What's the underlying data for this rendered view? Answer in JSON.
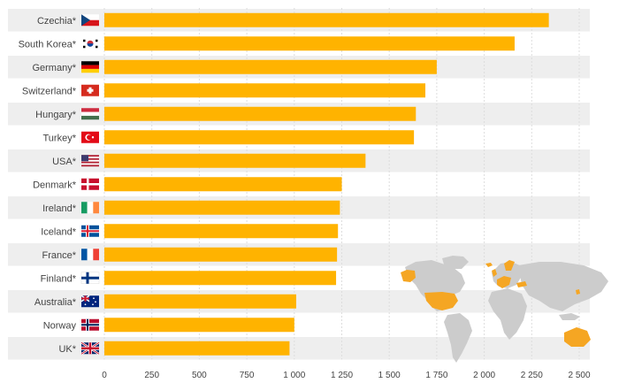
{
  "chart_data": {
    "type": "bar",
    "orientation": "horizontal",
    "categories": [
      "Czechia*",
      "South Korea*",
      "Germany*",
      "Switzerland*",
      "Hungary*",
      "Turkey*",
      "USA*",
      "Denmark*",
      "Ireland*",
      "Iceland*",
      "France*",
      "Finland*",
      "Australia*",
      "Norway",
      "UK*"
    ],
    "values": [
      2340,
      2160,
      1750,
      1690,
      1640,
      1630,
      1375,
      1250,
      1240,
      1230,
      1225,
      1220,
      1010,
      1000,
      975
    ],
    "xlim": [
      0,
      2500
    ],
    "xticks": [
      0,
      250,
      500,
      750,
      1000,
      1250,
      1500,
      1750,
      2000,
      2250,
      2500
    ],
    "xtick_labels": [
      "0",
      "250",
      "500",
      "750",
      "1 000",
      "1 250",
      "1 500",
      "1 750",
      "2 000",
      "2 250",
      "2 500"
    ],
    "bar_color": "#FFB300",
    "row_band_color": "#EEEEEE",
    "map_land_color": "#CCCCCC",
    "map_highlight_color": "#F5A623",
    "grid": true,
    "flag_icons": [
      "czech-flag-icon",
      "south-korea-flag-icon",
      "germany-flag-icon",
      "switzerland-flag-icon",
      "hungary-flag-icon",
      "turkey-flag-icon",
      "usa-flag-icon",
      "denmark-flag-icon",
      "ireland-flag-icon",
      "iceland-flag-icon",
      "france-flag-icon",
      "finland-flag-icon",
      "australia-flag-icon",
      "norway-flag-icon",
      "uk-flag-icon"
    ]
  }
}
